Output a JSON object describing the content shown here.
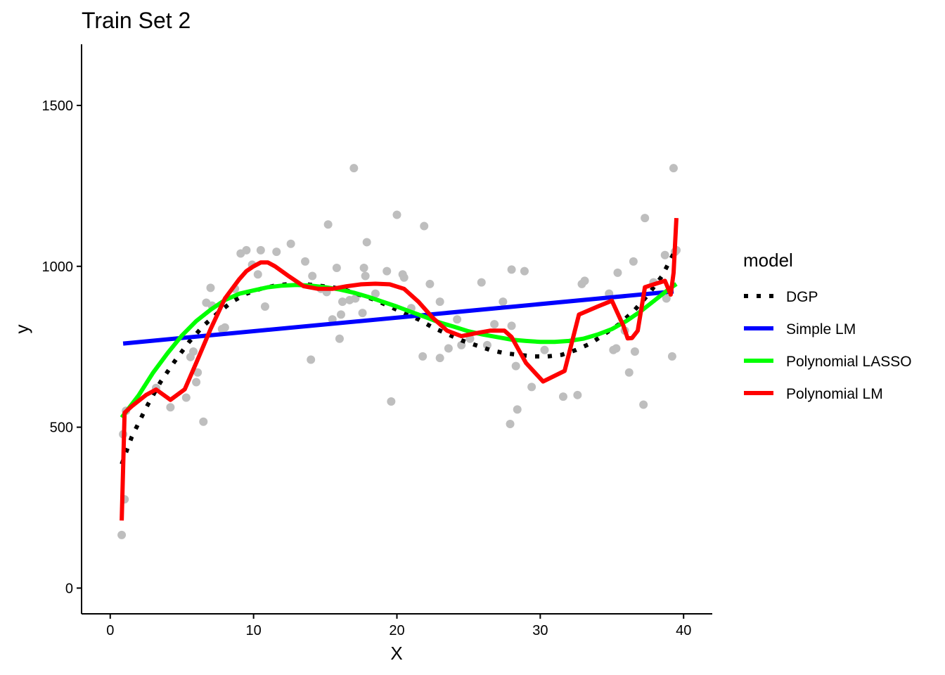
{
  "chart_data": {
    "type": "scatter",
    "title": "Train Set 2",
    "xlabel": "X",
    "ylabel": "y",
    "xlim": [
      -2,
      42
    ],
    "ylim": [
      -80,
      1690
    ],
    "x_ticks": [
      0,
      10,
      20,
      30,
      40
    ],
    "y_ticks": [
      0,
      500,
      1000,
      1500
    ],
    "grid": false,
    "legend": {
      "title": "model",
      "position": "right",
      "entries": [
        {
          "name": "DGP",
          "color": "#000000",
          "style": "dotted"
        },
        {
          "name": "Simple LM",
          "color": "#0000ff",
          "style": "solid"
        },
        {
          "name": "Polynomial LASSO",
          "color": "#00ff00",
          "style": "solid"
        },
        {
          "name": "Polynomial LM",
          "color": "#ff0000",
          "style": "solid"
        }
      ]
    },
    "points": {
      "color": "#bebebe",
      "x": [
        0.8,
        0.9,
        1.0,
        1.1,
        3.2,
        4.2,
        5.3,
        5.6,
        5.8,
        6.0,
        6.1,
        6.5,
        6.7,
        7.0,
        7.1,
        7.8,
        8.0,
        8.7,
        9.1,
        9.5,
        9.9,
        10.3,
        10.5,
        10.8,
        11.6,
        12.6,
        13.6,
        14.0,
        14.1,
        14.7,
        15.1,
        15.2,
        15.5,
        15.8,
        16.0,
        16.1,
        16.2,
        16.7,
        17.0,
        17.1,
        17.6,
        17.7,
        17.8,
        17.9,
        18.5,
        19.3,
        19.6,
        20.0,
        20.4,
        20.5,
        21.0,
        21.8,
        21.9,
        22.3,
        23.0,
        23.0,
        23.6,
        24.2,
        24.5,
        25.1,
        25.9,
        26.3,
        26.8,
        27.4,
        27.9,
        28.0,
        28.0,
        28.3,
        28.4,
        28.9,
        29.4,
        30.3,
        31.6,
        32.6,
        32.9,
        33.1,
        34.8,
        35.1,
        35.3,
        35.4,
        35.9,
        36.2,
        36.5,
        36.6,
        37.2,
        37.3,
        37.9,
        38.7,
        38.8,
        39.2,
        39.3,
        39.4,
        39.5
      ],
      "y": [
        165,
        478,
        276,
        551,
        622,
        562,
        592,
        718,
        735,
        640,
        670,
        517,
        887,
        933,
        878,
        805,
        810,
        930,
        1040,
        1050,
        1005,
        975,
        1050,
        875,
        1045,
        1070,
        1015,
        710,
        970,
        930,
        920,
        1130,
        835,
        995,
        775,
        850,
        890,
        895,
        1305,
        900,
        855,
        995,
        970,
        1075,
        915,
        985,
        580,
        1160,
        975,
        965,
        870,
        720,
        1125,
        945,
        890,
        715,
        745,
        835,
        755,
        775,
        950,
        755,
        820,
        890,
        510,
        990,
        815,
        690,
        555,
        985,
        625,
        740,
        595,
        600,
        945,
        955,
        915,
        740,
        745,
        980,
        800,
        670,
        1015,
        735,
        570,
        1150,
        950,
        1035,
        900,
        720,
        1305,
        1045,
        1050
      ]
    },
    "series": [
      {
        "name": "DGP",
        "color": "#000000",
        "x": [
          0.8,
          1.5,
          2.5,
          3.5,
          4.5,
          5.5,
          6.5,
          7.5,
          8.5,
          9.5,
          10.5,
          11.5,
          12.5,
          13.5,
          14.5,
          15.5,
          16.5,
          17.5,
          18.5,
          19.5,
          20.5,
          21.5,
          22.5,
          23.5,
          24.5,
          25.5,
          26.5,
          27.5,
          28.5,
          29.5,
          30.5,
          31.5,
          32.5,
          33.5,
          34.5,
          35.5,
          36.5,
          37.5,
          38.5,
          39.3
        ],
        "values": [
          385,
          470,
          560,
          640,
          705,
          765,
          815,
          855,
          890,
          915,
          930,
          940,
          945,
          945,
          940,
          935,
          925,
          910,
          895,
          875,
          855,
          835,
          810,
          790,
          770,
          755,
          740,
          730,
          725,
          720,
          720,
          725,
          740,
          760,
          790,
          820,
          860,
          910,
          970,
          1040
        ]
      },
      {
        "name": "Simple LM",
        "color": "#0000ff",
        "x": [
          0.9,
          39.3
        ],
        "values": [
          760,
          922
        ]
      },
      {
        "name": "Polynomial LASSO",
        "color": "#00ff00",
        "x": [
          0.8,
          2.0,
          3.0,
          4.0,
          5.0,
          6.0,
          7.0,
          8.0,
          9.0,
          10.0,
          11.0,
          12.0,
          13.0,
          14.0,
          15.0,
          16.0,
          17.0,
          18.0,
          19.0,
          20.0,
          21.0,
          22.0,
          23.0,
          24.0,
          25.0,
          26.0,
          27.0,
          28.0,
          29.0,
          30.0,
          31.0,
          32.0,
          33.0,
          34.0,
          35.0,
          36.0,
          37.0,
          38.0,
          39.0,
          39.5
        ],
        "values": [
          530,
          600,
          670,
          730,
          785,
          830,
          865,
          895,
          915,
          925,
          935,
          940,
          942,
          940,
          935,
          928,
          918,
          905,
          890,
          875,
          858,
          842,
          825,
          812,
          798,
          788,
          780,
          772,
          768,
          765,
          765,
          768,
          775,
          788,
          805,
          830,
          860,
          895,
          930,
          945
        ]
      },
      {
        "name": "Polynomial LM",
        "color": "#ff0000",
        "x": [
          0.8,
          1.0,
          1.5,
          2.5,
          3.2,
          4.2,
          5.2,
          6.0,
          7.0,
          8.0,
          9.0,
          9.5,
          10.0,
          10.5,
          11.0,
          11.5,
          12.5,
          13.5,
          14.5,
          15.5,
          16.5,
          17.5,
          18.5,
          19.5,
          20.5,
          21.5,
          22.5,
          23.5,
          24.5,
          25.5,
          26.5,
          27.5,
          28.0,
          29.0,
          30.2,
          31.7,
          32.7,
          34.0,
          35.0,
          35.8,
          36.1,
          36.4,
          36.8,
          37.3,
          38.0,
          38.7,
          39.1,
          39.3,
          39.5
        ],
        "values": [
          210,
          545,
          565,
          600,
          617,
          585,
          618,
          700,
          805,
          900,
          960,
          985,
          1000,
          1012,
          1012,
          1000,
          968,
          938,
          930,
          930,
          938,
          944,
          946,
          944,
          930,
          890,
          840,
          800,
          783,
          792,
          800,
          800,
          780,
          700,
          642,
          675,
          850,
          875,
          893,
          815,
          776,
          777,
          800,
          935,
          945,
          955,
          912,
          980,
          1150
        ]
      }
    ]
  }
}
